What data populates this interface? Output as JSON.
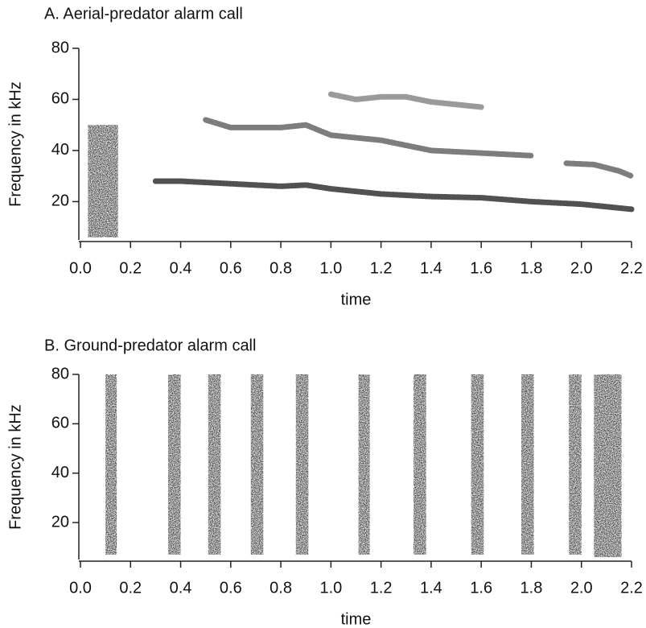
{
  "chart_data": [
    {
      "type": "spectrogram",
      "title": "A. Aerial-predator alarm call",
      "xlabel": "time",
      "ylabel": "Frequency in kHz",
      "xlim": [
        0,
        2.2
      ],
      "ylim": [
        5,
        80
      ],
      "xticks": [
        {
          "value": 0,
          "label": "0.0"
        },
        0.2,
        0.4,
        0.6,
        0.8,
        {
          "value": 1,
          "label": "1.0"
        },
        1.2,
        1.4,
        1.6,
        1.8,
        {
          "value": 2,
          "label": "2.0"
        },
        2.2
      ],
      "yticks": [
        20,
        40,
        60,
        80
      ],
      "bursts": [
        {
          "start": 0.03,
          "end": 0.15,
          "low": 6,
          "high": 50
        }
      ],
      "series": [
        {
          "color": "#333333",
          "x": [
            0.3,
            0.4,
            0.6,
            0.8,
            0.9,
            1.0,
            1.2,
            1.4,
            1.6,
            1.8,
            2.0,
            2.2
          ],
          "values": [
            28,
            28,
            27,
            26,
            26.5,
            25,
            23,
            22,
            21.5,
            20,
            19,
            17
          ]
        },
        {
          "color": "#666666",
          "x": [
            0.5,
            0.6,
            0.7,
            0.8,
            0.9,
            1.0,
            1.1,
            1.2,
            1.4,
            1.6,
            1.8
          ],
          "values": [
            52,
            49,
            49,
            49,
            50,
            46,
            45,
            44,
            40,
            39,
            38
          ]
        },
        {
          "color": "#666666",
          "x": [
            1.94,
            2.05,
            2.15,
            2.2
          ],
          "values": [
            35,
            34.5,
            32,
            30
          ]
        },
        {
          "color": "#888888",
          "x": [
            1.0,
            1.1,
            1.2,
            1.3,
            1.4,
            1.6
          ],
          "values": [
            62,
            60,
            61,
            61,
            59,
            57
          ]
        }
      ]
    },
    {
      "type": "spectrogram",
      "title": "B. Ground-predator alarm call",
      "xlabel": "time",
      "ylabel": "Frequency in kHz",
      "xlim": [
        0,
        2.2
      ],
      "ylim": [
        5,
        80
      ],
      "xticks": [
        {
          "value": 0,
          "label": "0.0"
        },
        0.2,
        0.4,
        0.6,
        0.8,
        {
          "value": 1,
          "label": "1.0"
        },
        1.2,
        1.4,
        1.6,
        1.8,
        {
          "value": 2,
          "label": "2.0"
        },
        2.2
      ],
      "yticks": [
        20,
        40,
        60,
        80
      ],
      "bursts": [
        {
          "start": 0.1,
          "end": 0.145,
          "low": 7,
          "high": 80
        },
        {
          "start": 0.35,
          "end": 0.4,
          "low": 7,
          "high": 80
        },
        {
          "start": 0.51,
          "end": 0.56,
          "low": 7,
          "high": 80
        },
        {
          "start": 0.68,
          "end": 0.73,
          "low": 7,
          "high": 80
        },
        {
          "start": 0.86,
          "end": 0.91,
          "low": 7,
          "high": 80
        },
        {
          "start": 1.11,
          "end": 1.155,
          "low": 7,
          "high": 80
        },
        {
          "start": 1.33,
          "end": 1.38,
          "low": 7,
          "high": 80
        },
        {
          "start": 1.56,
          "end": 1.61,
          "low": 7,
          "high": 80
        },
        {
          "start": 1.76,
          "end": 1.81,
          "low": 7,
          "high": 80
        },
        {
          "start": 1.95,
          "end": 2.0,
          "low": 7,
          "high": 80
        },
        {
          "start": 2.05,
          "end": 2.16,
          "low": 6,
          "high": 80
        }
      ],
      "series": []
    }
  ]
}
